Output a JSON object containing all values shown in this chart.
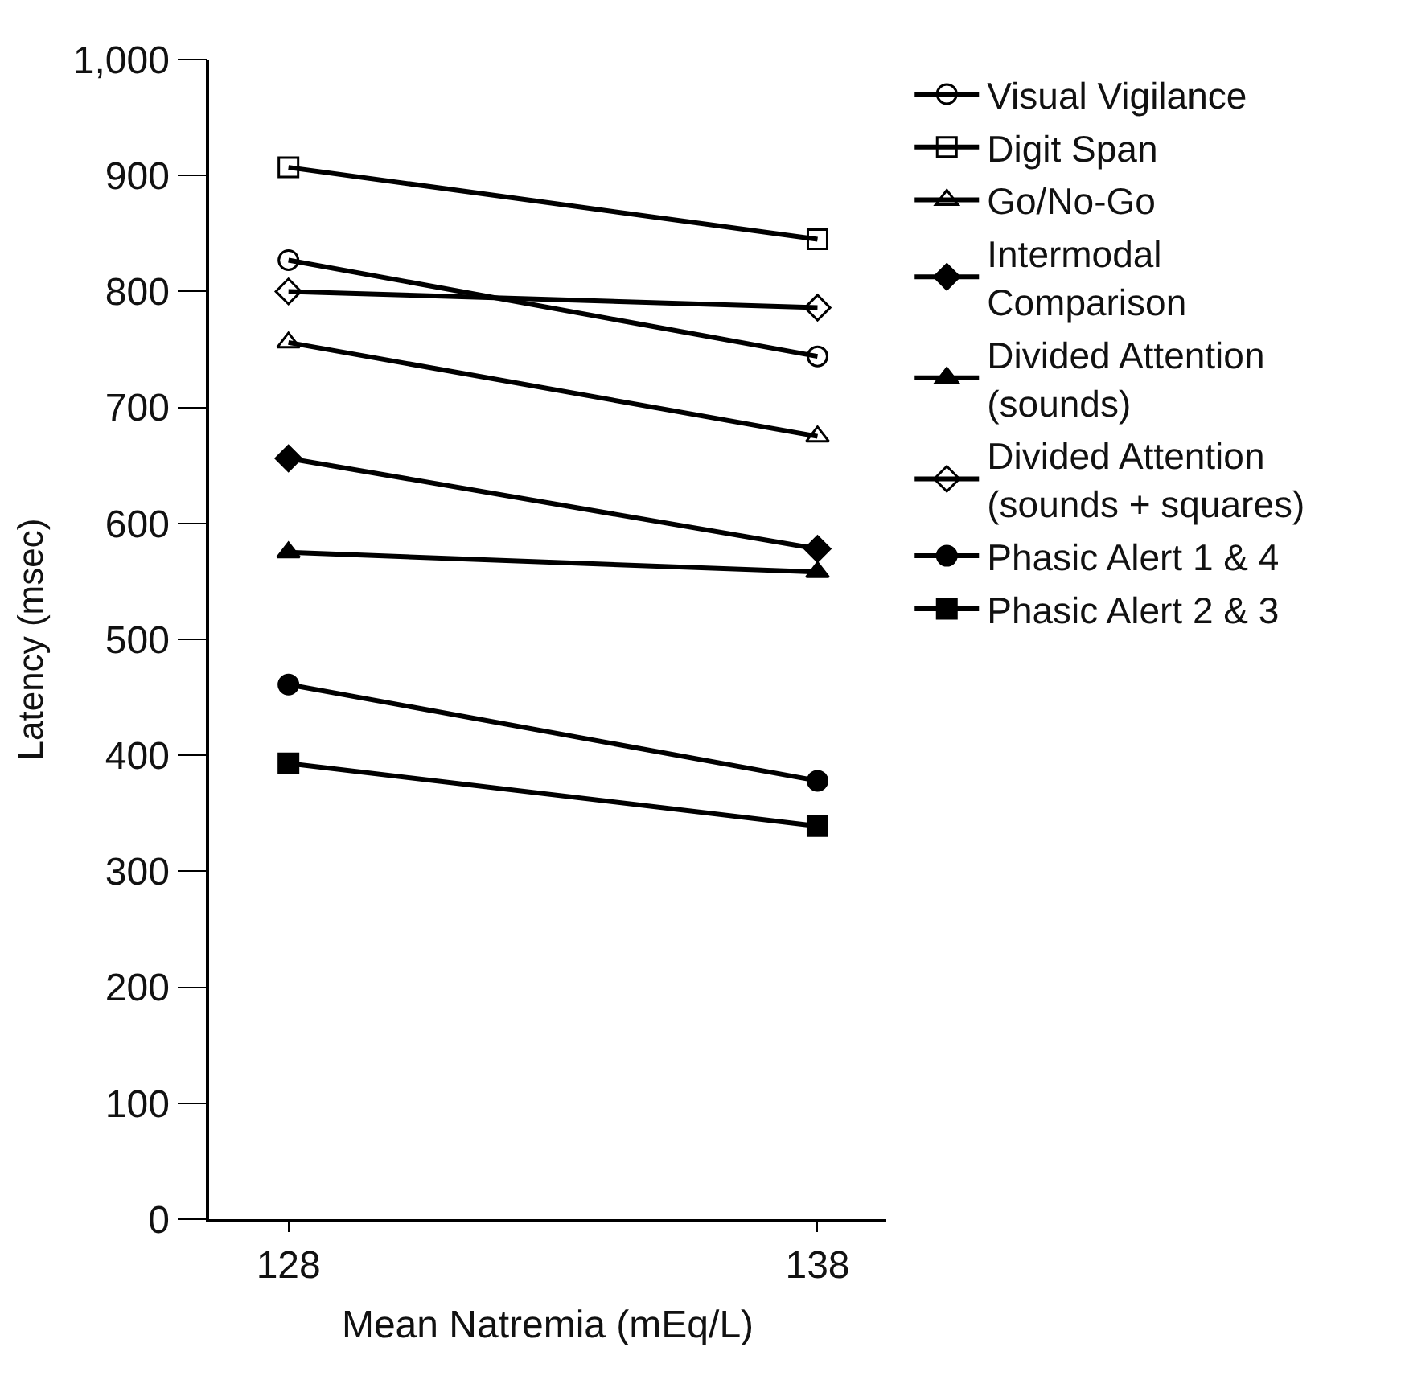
{
  "chart_data": {
    "type": "line",
    "xlabel": "Mean Natremia (mEq/L)",
    "ylabel": "Latency (msec)",
    "x": [
      128,
      138
    ],
    "xlim": [
      126.5,
      139.3
    ],
    "xticks": [
      128,
      138
    ],
    "ylim": [
      0,
      1000
    ],
    "yticks": [
      0,
      100,
      200,
      300,
      400,
      500,
      600,
      700,
      800,
      900,
      {
        "value": 1000,
        "label": "1,000"
      }
    ],
    "legend": "right",
    "line_style": "solid",
    "series": [
      {
        "name": "Visual Vigilance",
        "color": "#000000",
        "marker": "circle-open",
        "values": [
          827,
          744
        ]
      },
      {
        "name": "Digit Span",
        "color": "#000000",
        "marker": "square-open",
        "values": [
          907,
          845
        ]
      },
      {
        "name": "Go/No-Go",
        "color": "#000000",
        "marker": "triangle-open",
        "values": [
          756,
          675
        ]
      },
      {
        "name": "Intermodal Comparison",
        "color": "#000000",
        "marker": "diamond",
        "values": [
          656,
          578
        ]
      },
      {
        "name": "Divided Attention (sounds)",
        "color": "#000000",
        "marker": "triangle",
        "values": [
          575,
          558
        ]
      },
      {
        "name": "Divided Attention (sounds + squares)",
        "color": "#000000",
        "marker": "diamond-open",
        "values": [
          800,
          786
        ]
      },
      {
        "name": "Phasic Alert 1 & 4",
        "color": "#000000",
        "marker": "circle",
        "values": [
          461,
          378
        ]
      },
      {
        "name": "Phasic Alert 2 & 3",
        "color": "#000000",
        "marker": "square",
        "values": [
          393,
          339
        ]
      }
    ]
  }
}
